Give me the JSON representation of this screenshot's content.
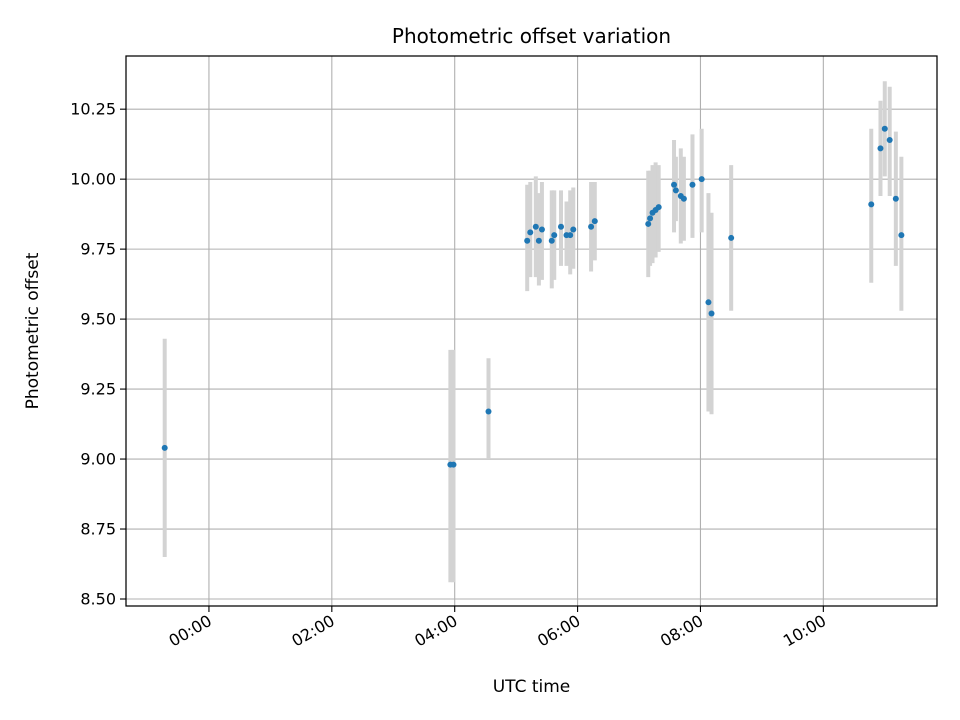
{
  "chart_data": {
    "type": "scatter",
    "title": "Photometric offset variation",
    "xlabel": "UTC time",
    "ylabel": "Photometric offset",
    "x_unit": "hours",
    "xlim": [
      -1.35,
      11.85
    ],
    "ylim": [
      8.475,
      10.44
    ],
    "grid": true,
    "legend": "none",
    "x_ticks": [
      {
        "value": 0,
        "label": "00:00"
      },
      {
        "value": 2,
        "label": "02:00"
      },
      {
        "value": 4,
        "label": "04:00"
      },
      {
        "value": 6,
        "label": "06:00"
      },
      {
        "value": 8,
        "label": "08:00"
      },
      {
        "value": 10,
        "label": "10:00"
      }
    ],
    "y_ticks": [
      {
        "value": 8.5,
        "label": "8.50"
      },
      {
        "value": 8.75,
        "label": "8.75"
      },
      {
        "value": 9.0,
        "label": "9.00"
      },
      {
        "value": 9.25,
        "label": "9.25"
      },
      {
        "value": 9.5,
        "label": "9.50"
      },
      {
        "value": 9.75,
        "label": "9.75"
      },
      {
        "value": 10.0,
        "label": "10.00"
      },
      {
        "value": 10.25,
        "label": "10.25"
      }
    ],
    "colors": {
      "point": "#1f77b4",
      "errorbar": "#d3d3d3",
      "grid": "#b0b0b0",
      "axes": "#000000"
    },
    "points": [
      {
        "x": -0.72,
        "y": 9.04,
        "lo": 8.65,
        "hi": 9.43
      },
      {
        "x": 3.93,
        "y": 8.98,
        "lo": 8.56,
        "hi": 9.39
      },
      {
        "x": 3.98,
        "y": 8.98,
        "lo": 8.56,
        "hi": 9.39
      },
      {
        "x": 4.55,
        "y": 9.17,
        "lo": 9.0,
        "hi": 9.36
      },
      {
        "x": 5.18,
        "y": 9.78,
        "lo": 9.6,
        "hi": 9.98
      },
      {
        "x": 5.23,
        "y": 9.81,
        "lo": 9.65,
        "hi": 9.99
      },
      {
        "x": 5.32,
        "y": 9.83,
        "lo": 9.65,
        "hi": 10.01
      },
      {
        "x": 5.37,
        "y": 9.78,
        "lo": 9.62,
        "hi": 9.95
      },
      {
        "x": 5.42,
        "y": 9.82,
        "lo": 9.64,
        "hi": 9.99
      },
      {
        "x": 5.58,
        "y": 9.78,
        "lo": 9.61,
        "hi": 9.96
      },
      {
        "x": 5.62,
        "y": 9.8,
        "lo": 9.64,
        "hi": 9.96
      },
      {
        "x": 5.73,
        "y": 9.83,
        "lo": 9.69,
        "hi": 9.96
      },
      {
        "x": 5.82,
        "y": 9.8,
        "lo": 9.69,
        "hi": 9.92
      },
      {
        "x": 5.88,
        "y": 9.8,
        "lo": 9.66,
        "hi": 9.96
      },
      {
        "x": 5.93,
        "y": 9.82,
        "lo": 9.68,
        "hi": 9.97
      },
      {
        "x": 6.22,
        "y": 9.83,
        "lo": 9.67,
        "hi": 9.99
      },
      {
        "x": 6.28,
        "y": 9.85,
        "lo": 9.71,
        "hi": 9.99
      },
      {
        "x": 7.15,
        "y": 9.84,
        "lo": 9.65,
        "hi": 10.03
      },
      {
        "x": 7.18,
        "y": 9.86,
        "lo": 9.69,
        "hi": 10.03
      },
      {
        "x": 7.22,
        "y": 9.88,
        "lo": 9.7,
        "hi": 10.05
      },
      {
        "x": 7.27,
        "y": 9.89,
        "lo": 9.72,
        "hi": 10.06
      },
      {
        "x": 7.32,
        "y": 9.9,
        "lo": 9.74,
        "hi": 10.05
      },
      {
        "x": 7.57,
        "y": 9.98,
        "lo": 9.81,
        "hi": 10.14
      },
      {
        "x": 7.6,
        "y": 9.96,
        "lo": 9.85,
        "hi": 10.08
      },
      {
        "x": 7.68,
        "y": 9.94,
        "lo": 9.77,
        "hi": 10.11
      },
      {
        "x": 7.73,
        "y": 9.93,
        "lo": 9.78,
        "hi": 10.08
      },
      {
        "x": 7.87,
        "y": 9.98,
        "lo": 9.79,
        "hi": 10.16
      },
      {
        "x": 8.02,
        "y": 10.0,
        "lo": 9.81,
        "hi": 10.18
      },
      {
        "x": 8.13,
        "y": 9.56,
        "lo": 9.17,
        "hi": 9.95
      },
      {
        "x": 8.18,
        "y": 9.52,
        "lo": 9.16,
        "hi": 9.88
      },
      {
        "x": 8.5,
        "y": 9.79,
        "lo": 9.53,
        "hi": 10.05
      },
      {
        "x": 10.78,
        "y": 9.91,
        "lo": 9.63,
        "hi": 10.18
      },
      {
        "x": 10.93,
        "y": 10.11,
        "lo": 9.94,
        "hi": 10.28
      },
      {
        "x": 11.0,
        "y": 10.18,
        "lo": 10.01,
        "hi": 10.35
      },
      {
        "x": 11.08,
        "y": 10.14,
        "lo": 9.94,
        "hi": 10.33
      },
      {
        "x": 11.18,
        "y": 9.93,
        "lo": 9.69,
        "hi": 10.17
      },
      {
        "x": 11.27,
        "y": 9.8,
        "lo": 9.53,
        "hi": 10.08
      }
    ]
  }
}
